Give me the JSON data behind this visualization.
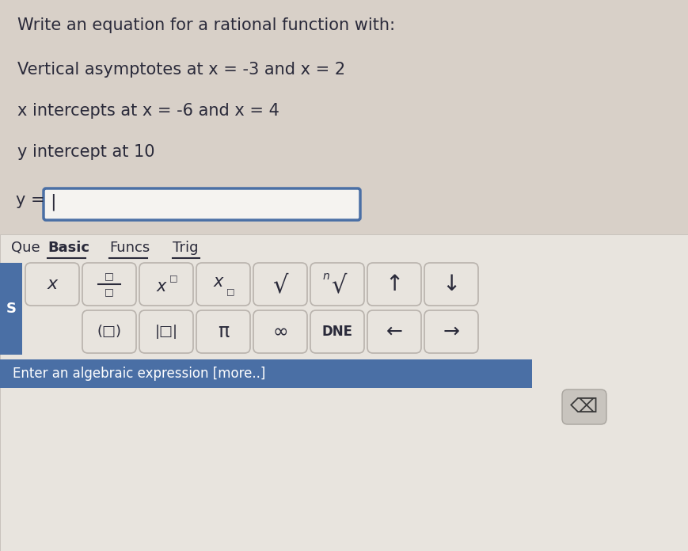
{
  "background_color": "#d8d0c8",
  "title_lines": [
    "Write an equation for a rational function with:",
    "Vertical asymptotes at x = -3 and x = 2",
    "x intercepts at x = -6 and x = 4",
    "y intercept at 10"
  ],
  "y_label": "y =",
  "input_box_color": "#f5f3f0",
  "input_box_border": "#4a6fa5",
  "panel_bg": "#e8e4de",
  "panel_border": "#c0bab4",
  "que_label": "Que",
  "toolbar_tabs": [
    "Basic",
    "Funcs",
    "Trig"
  ],
  "toolbar_active_tab": "Basic",
  "s_button_color": "#4a6fa5",
  "s_button_text": "S",
  "button_bg": "#e8e4de",
  "button_border": "#b8b2ac",
  "bottom_bar_color": "#4a6fa5",
  "bottom_bar_text": "Enter an algebraic expression [more..]",
  "bottom_bar_text_color": "#ffffff",
  "font_color_dark": "#2a2a3a",
  "title_color": "#2a2a3a",
  "underline_color": "#2a2a3a"
}
